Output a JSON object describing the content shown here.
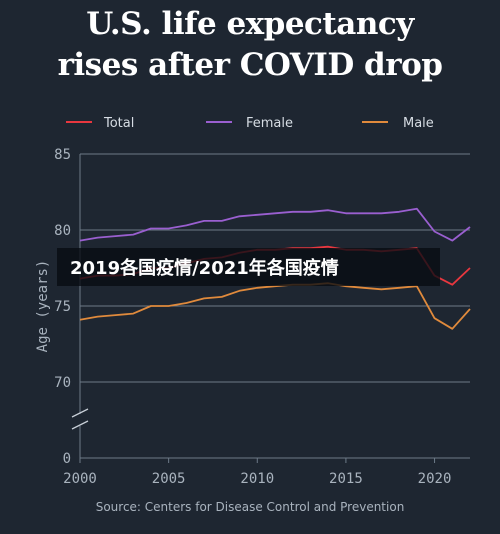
{
  "chart_data": {
    "type": "line",
    "title": "U.S. life expectancy rises after COVID drop",
    "title_lines": [
      "U.S. life expectancy",
      "rises after COVID drop"
    ],
    "ylabel": "Age (years)",
    "xlabel": "",
    "source": "Source: Centers for Disease Control and Prevention",
    "x": [
      2000,
      2001,
      2002,
      2003,
      2004,
      2005,
      2006,
      2007,
      2008,
      2009,
      2010,
      2011,
      2012,
      2013,
      2014,
      2015,
      2016,
      2017,
      2018,
      2019,
      2020,
      2021,
      2022
    ],
    "series": [
      {
        "name": "Total",
        "color": "#e8373f",
        "values": [
          76.8,
          77.0,
          77.0,
          77.1,
          77.5,
          77.5,
          77.8,
          78.1,
          78.2,
          78.5,
          78.7,
          78.7,
          78.8,
          78.8,
          78.9,
          78.7,
          78.7,
          78.6,
          78.7,
          78.8,
          77.0,
          76.4,
          77.5
        ]
      },
      {
        "name": "Female",
        "color": "#9a5fd0",
        "values": [
          79.3,
          79.5,
          79.6,
          79.7,
          80.1,
          80.1,
          80.3,
          80.6,
          80.6,
          80.9,
          81.0,
          81.1,
          81.2,
          81.2,
          81.3,
          81.1,
          81.1,
          81.1,
          81.2,
          81.4,
          79.9,
          79.3,
          80.2
        ]
      },
      {
        "name": "Male",
        "color": "#e08a3c",
        "values": [
          74.1,
          74.3,
          74.4,
          74.5,
          75.0,
          75.0,
          75.2,
          75.5,
          75.6,
          76.0,
          76.2,
          76.3,
          76.4,
          76.4,
          76.5,
          76.3,
          76.2,
          76.1,
          76.2,
          76.3,
          74.2,
          73.5,
          74.8
        ]
      }
    ],
    "yticks": [
      "85",
      "80",
      "75",
      "70",
      "0"
    ],
    "xticks": [
      "2000",
      "2005",
      "2010",
      "2015",
      "2020"
    ],
    "ylim": [
      69,
      85
    ],
    "xlim": [
      2000,
      2022
    ],
    "axis_break": true,
    "grid": true,
    "legend_position": "top"
  },
  "overlay_text": "2019各国疫情/2021年各国疫情",
  "colors": {
    "background": "#1e2631",
    "grid": "#6d7a88",
    "axis_text": "#a9b3be"
  }
}
